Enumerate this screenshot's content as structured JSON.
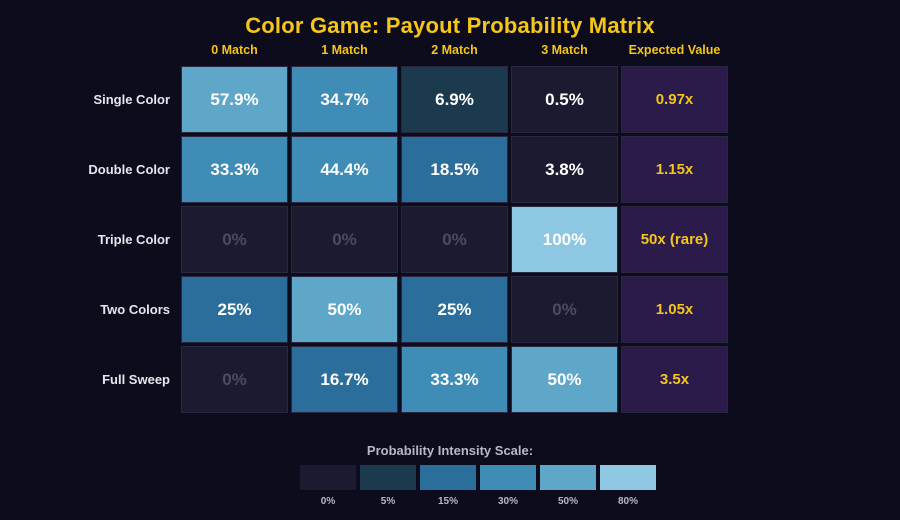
{
  "chart_data": {
    "type": "heatmap",
    "title": "Color Game: Payout Probability Matrix",
    "columns": [
      "0 Match",
      "1 Match",
      "2 Match",
      "3 Match",
      "Expected Value"
    ],
    "rows": [
      {
        "label": "Single Color",
        "cells": [
          "57.9%",
          "34.7%",
          "6.9%",
          "0.5%"
        ],
        "values": [
          57.9,
          34.7,
          6.9,
          0.5
        ],
        "expected_value": "0.97x"
      },
      {
        "label": "Double Color",
        "cells": [
          "33.3%",
          "44.4%",
          "18.5%",
          "3.8%"
        ],
        "values": [
          33.3,
          44.4,
          18.5,
          3.8
        ],
        "expected_value": "1.15x"
      },
      {
        "label": "Triple Color",
        "cells": [
          "0%",
          "0%",
          "0%",
          "100%"
        ],
        "values": [
          0,
          0,
          0,
          100
        ],
        "expected_value": "50x (rare)"
      },
      {
        "label": "Two Colors",
        "cells": [
          "25%",
          "50%",
          "25%",
          "0%"
        ],
        "values": [
          25,
          50,
          25,
          0
        ],
        "expected_value": "1.05x"
      },
      {
        "label": "Full Sweep",
        "cells": [
          "0%",
          "16.7%",
          "33.3%",
          "50%"
        ],
        "values": [
          0,
          16.7,
          33.3,
          50
        ],
        "expected_value": "3.5x"
      }
    ],
    "legend": {
      "title": "Probability Intensity Scale:",
      "stops": [
        {
          "label": "0%",
          "threshold": 0,
          "color": "#1b1a30"
        },
        {
          "label": "5%",
          "threshold": 5,
          "color": "#1c3a4d"
        },
        {
          "label": "15%",
          "threshold": 15,
          "color": "#2b6d9b"
        },
        {
          "label": "30%",
          "threshold": 30,
          "color": "#3f8db6"
        },
        {
          "label": "50%",
          "threshold": 50,
          "color": "#5fa7c9"
        },
        {
          "label": "80%",
          "threshold": 80,
          "color": "#8dc7e2"
        }
      ]
    },
    "colors": {
      "title": "#f5c518",
      "background": "#0d0c1d",
      "expected_value_cell": "#2a1b4a",
      "expected_value_text": "#f5c518",
      "zero_text": "#4d4a62"
    }
  }
}
